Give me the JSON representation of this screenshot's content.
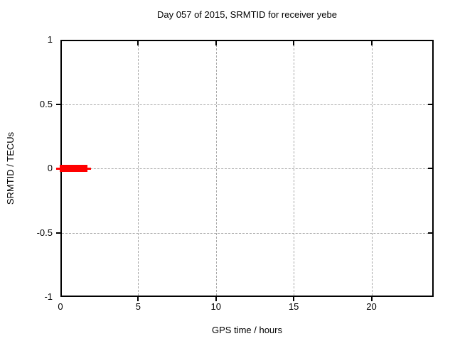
{
  "chart_data": {
    "type": "line",
    "title": "Day 057 of 2015, SRMTID for receiver yebe",
    "xlabel": "GPS time / hours",
    "ylabel": "SRMTID / TECUs",
    "xlim": [
      0,
      24
    ],
    "ylim": [
      -1,
      1
    ],
    "x_ticks": [
      0,
      5,
      10,
      15,
      20
    ],
    "x_tick_labels": [
      "0",
      "5",
      "10",
      "15",
      "20"
    ],
    "y_ticks": [
      1,
      0.5,
      0,
      -0.5,
      -1
    ],
    "y_tick_labels": [
      "1",
      "0.5",
      "0",
      "-0.5",
      "-1"
    ],
    "grid": true,
    "grid_style": "dashed",
    "grid_color": "#a8a8a8",
    "border_color": "#000000",
    "background_color": "#ffffff",
    "text_color": "#000000",
    "legend": "none",
    "series": [
      {
        "name": "SRMTID",
        "color": "#ff0000",
        "shape": "thick horizontal line segment",
        "y": 0,
        "x_start": 0,
        "x_end": 1.8,
        "points": [
          [
            0,
            0
          ],
          [
            1.8,
            0
          ]
        ]
      }
    ]
  }
}
